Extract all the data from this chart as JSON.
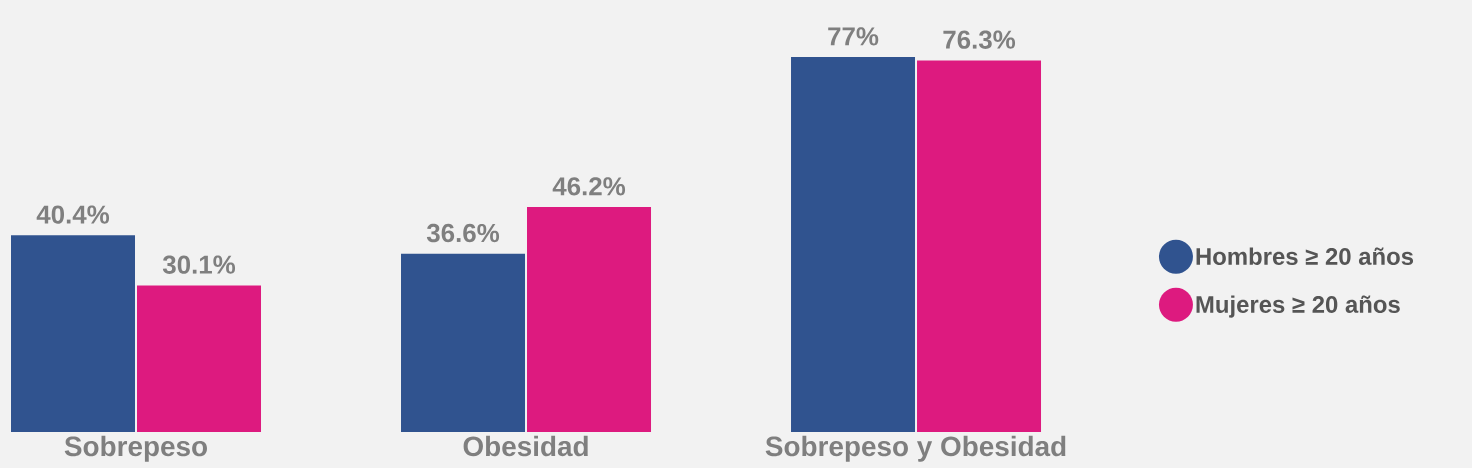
{
  "chart_data": {
    "type": "bar",
    "categories": [
      "Sobrepeso",
      "Obesidad",
      "Sobrepeso y Obesidad"
    ],
    "series": [
      {
        "name": "Hombres ≥ 20 años",
        "color": "#30538f",
        "values": [
          40.4,
          36.6,
          77
        ],
        "value_labels": [
          "40.4%",
          "36.6%",
          "77%"
        ]
      },
      {
        "name": "Mujeres ≥ 20 años",
        "color": "#dd1a7f",
        "values": [
          30.1,
          46.2,
          76.3
        ],
        "value_labels": [
          "30.1%",
          "46.2%",
          "76.3%"
        ]
      }
    ],
    "legend": "right"
  }
}
